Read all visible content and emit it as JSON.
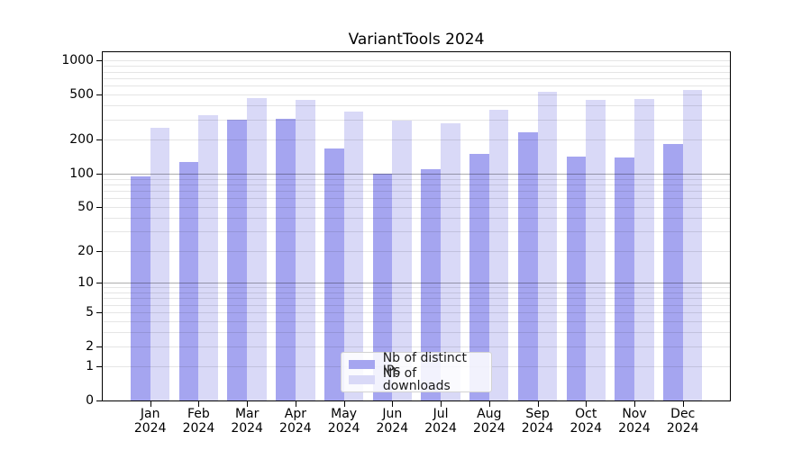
{
  "title": "VariantTools 2024",
  "chart_data": {
    "type": "bar",
    "title": "VariantTools 2024",
    "yscale": "log1p",
    "ylim": [
      0,
      1190
    ],
    "y_ticks": [
      0,
      1,
      2,
      5,
      10,
      20,
      50,
      100,
      200,
      500,
      1000
    ],
    "grid": true,
    "gridline_values": [
      1,
      2,
      3,
      4,
      5,
      6,
      7,
      8,
      9,
      10,
      20,
      30,
      40,
      50,
      60,
      70,
      80,
      90,
      100,
      200,
      300,
      400,
      500,
      600,
      700,
      800,
      900,
      1000
    ],
    "major_grid_values": [
      10,
      100
    ],
    "categories": [
      "Jan",
      "Feb",
      "Mar",
      "Apr",
      "May",
      "Jun",
      "Jul",
      "Aug",
      "Sep",
      "Oct",
      "Nov",
      "Dec"
    ],
    "year_label": "2024",
    "series": [
      {
        "name": "Nb of distinct IPs",
        "color": "#a5a5f0",
        "values": [
          95,
          126,
          301,
          307,
          167,
          100,
          110,
          150,
          231,
          142,
          139,
          184
        ]
      },
      {
        "name": "Nb of downloads",
        "color": "#d9d9f7",
        "values": [
          253,
          331,
          470,
          447,
          355,
          293,
          280,
          371,
          535,
          447,
          456,
          547
        ]
      }
    ],
    "legend": {
      "position": "lower-center-inside"
    }
  },
  "colors": {
    "background": "#ffffff",
    "axis": "#000000",
    "grid_minor": "rgba(0,0,0,0.10)",
    "grid_major": "rgba(0,0,0,0.32)"
  }
}
